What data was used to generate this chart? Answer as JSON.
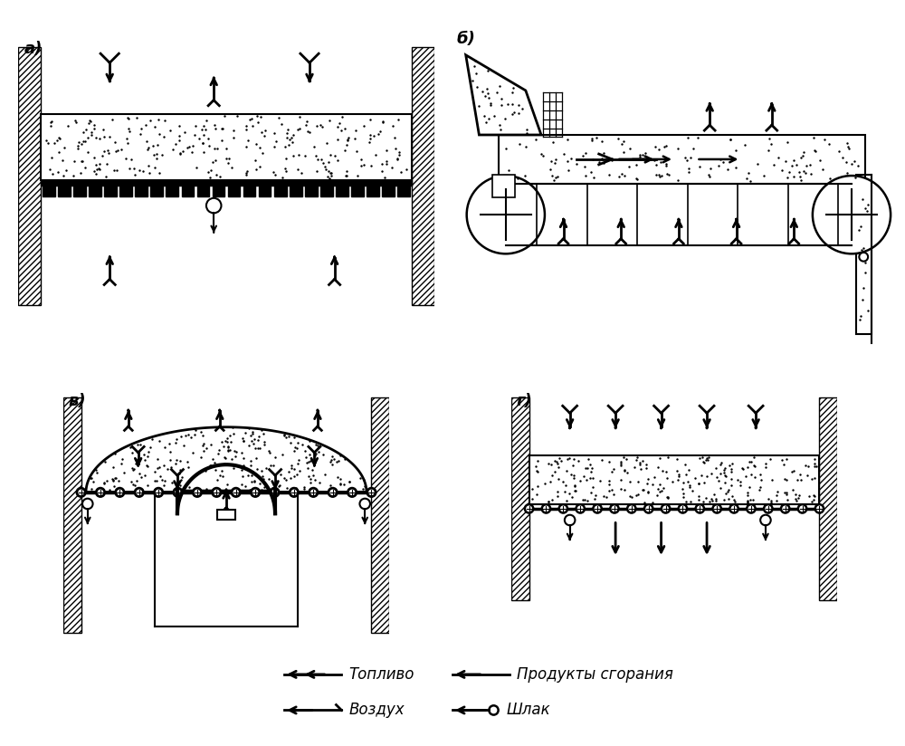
{
  "bg_color": "#ffffff",
  "panel_labels": [
    "а)",
    "б)",
    "в)",
    "г)"
  ],
  "legend": {
    "toplivo": "Топливо",
    "vozduh": "Воздух",
    "produkty": "Продукты сгорания",
    "shlak": "Шлак"
  }
}
